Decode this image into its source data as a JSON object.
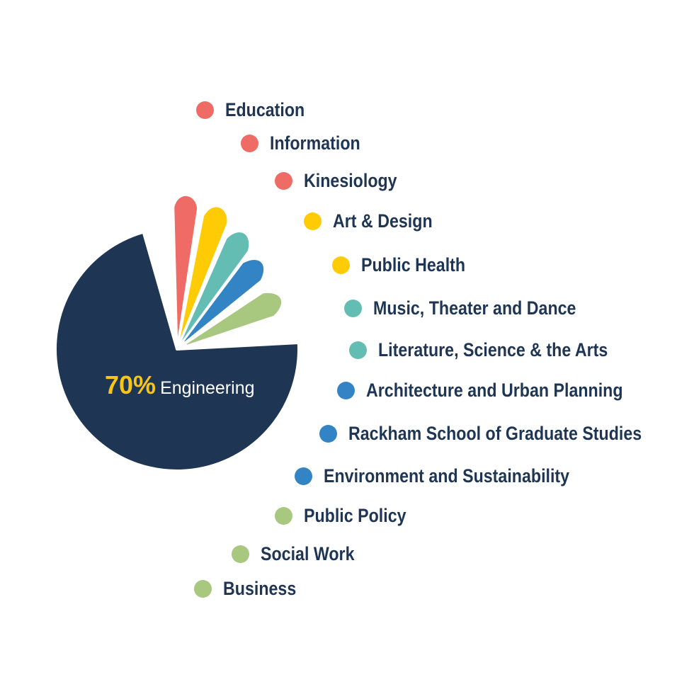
{
  "colors": {
    "background": "#ffffff",
    "text": "#1e3553",
    "main": "#1e3553",
    "coral": "#ef6b66",
    "yellow": "#ffcb05",
    "teal": "#63bdb3",
    "blue": "#3384c4",
    "green": "#a8c77f",
    "highlight": "#f5c518"
  },
  "chart_data": {
    "type": "pie",
    "slices": [
      {
        "label": "Engineering",
        "value": 70,
        "color": "#1e3553"
      },
      {
        "label": "Education / Information / Kinesiology",
        "value": 6,
        "color": "#ef6b66"
      },
      {
        "label": "Art & Design / Public Health",
        "value": 6,
        "color": "#ffcb05"
      },
      {
        "label": "Music, Theater and Dance / Literature, Science & the Arts",
        "value": 6,
        "color": "#63bdb3"
      },
      {
        "label": "Architecture and Urban Planning / Rackham School of Graduate Studies / Environment and Sustainability",
        "value": 6,
        "color": "#3384c4"
      },
      {
        "label": "Public Policy / Social Work / Business",
        "value": 6,
        "color": "#a8c77f"
      }
    ],
    "center_label": {
      "value": "70%",
      "name": "Engineering"
    },
    "legend": [
      {
        "label": "Education",
        "color": "#ef6b66"
      },
      {
        "label": "Information",
        "color": "#ef6b66"
      },
      {
        "label": "Kinesiology",
        "color": "#ef6b66"
      },
      {
        "label": "Art & Design",
        "color": "#ffcb05"
      },
      {
        "label": "Public Health",
        "color": "#ffcb05"
      },
      {
        "label": "Music, Theater and Dance",
        "color": "#63bdb3"
      },
      {
        "label": "Literature, Science & the Arts",
        "color": "#63bdb3"
      },
      {
        "label": "Architecture and Urban Planning",
        "color": "#3384c4"
      },
      {
        "label": "Rackham School of Graduate Studies",
        "color": "#3384c4"
      },
      {
        "label": "Environment and Sustainability",
        "color": "#3384c4"
      },
      {
        "label": "Public Policy",
        "color": "#a8c77f"
      },
      {
        "label": "Social Work",
        "color": "#a8c77f"
      },
      {
        "label": "Business",
        "color": "#a8c77f"
      }
    ],
    "legend_placement": "right"
  }
}
